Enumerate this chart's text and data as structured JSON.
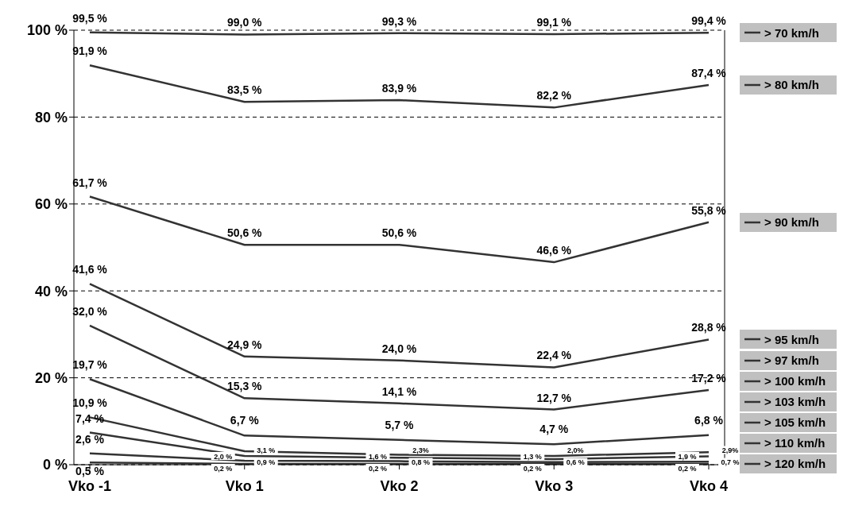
{
  "chart_data": {
    "type": "line",
    "categories": [
      "Vko -1",
      "Vko 1",
      "Vko 2",
      "Vko 3",
      "Vko 4"
    ],
    "series": [
      {
        "name": "> 70 km/h",
        "color": "#333333",
        "values": [
          99.5,
          99.0,
          99.3,
          99.1,
          99.4
        ],
        "value_labels": [
          "99,5 %",
          "99,0 %",
          "99,3 %",
          "99,1 %",
          "99,4 %"
        ]
      },
      {
        "name": "> 80 km/h",
        "color": "#333333",
        "values": [
          91.9,
          83.5,
          83.9,
          82.2,
          87.4
        ],
        "value_labels": [
          "91,9 %",
          "83,5 %",
          "83,9 %",
          "82,2 %",
          "87,4 %"
        ]
      },
      {
        "name": "> 90 km/h",
        "color": "#333333",
        "values": [
          61.7,
          50.6,
          50.6,
          46.6,
          55.8
        ],
        "value_labels": [
          "61,7 %",
          "50,6 %",
          "50,6 %",
          "46,6 %",
          "55,8 %"
        ]
      },
      {
        "name": "> 95 km/h",
        "color": "#333333",
        "values": [
          41.6,
          24.9,
          24.0,
          22.4,
          28.8
        ],
        "value_labels": [
          "41,6 %",
          "24,9 %",
          "24,0 %",
          "22,4 %",
          "28,8 %"
        ]
      },
      {
        "name": "> 97 km/h",
        "color": "#333333",
        "values": [
          32.0,
          15.3,
          14.1,
          12.7,
          17.2
        ],
        "value_labels": [
          "32,0 %",
          "15,3 %",
          "14,1 %",
          "12,7 %",
          "17,2 %"
        ]
      },
      {
        "name": "> 100 km/h",
        "color": "#333333",
        "values": [
          19.7,
          6.7,
          5.7,
          4.7,
          6.8
        ],
        "value_labels": [
          "19,7 %",
          "6,7 %",
          "5,7 %",
          "4,7 %",
          "6,8 %"
        ]
      },
      {
        "name": "> 103 km/h",
        "color": "#333333",
        "values": [
          10.9,
          3.1,
          2.3,
          2.0,
          2.9
        ],
        "value_labels": [
          "10,9 %",
          "3,1 %",
          "2,3%",
          "2,0%",
          "2,9%"
        ]
      },
      {
        "name": "> 105 km/h",
        "color": "#333333",
        "values": [
          7.4,
          2.0,
          1.6,
          1.3,
          1.9
        ],
        "value_labels": [
          "7,4 %",
          "2,0 %",
          "1,6 %",
          "1,3 %",
          "1,9 %"
        ]
      },
      {
        "name": "> 110 km/h",
        "color": "#333333",
        "values": [
          2.6,
          0.9,
          0.8,
          0.6,
          0.7
        ],
        "value_labels": [
          "2,6 %",
          "0,9 %",
          "0,8 %",
          "0,6 %",
          "0,7 %"
        ]
      },
      {
        "name": "> 120 km/h",
        "color": "#333333",
        "values": [
          0.5,
          0.2,
          0.2,
          0.2,
          0.2
        ],
        "value_labels": [
          "0,5 %",
          "0,2 %",
          "0,2 %",
          "0,2 %",
          "0,2 %"
        ]
      }
    ],
    "ylim": [
      0,
      100
    ],
    "yticks": [
      {
        "value": 0,
        "label": "0 %"
      },
      {
        "value": 20,
        "label": "20 %"
      },
      {
        "value": 40,
        "label": "40 %"
      },
      {
        "value": 60,
        "label": "60 %"
      },
      {
        "value": 80,
        "label": "80 %"
      },
      {
        "value": 100,
        "label": "100 %"
      }
    ],
    "grid": "y",
    "legend": "right",
    "marker": "none",
    "line_style": "solid"
  }
}
